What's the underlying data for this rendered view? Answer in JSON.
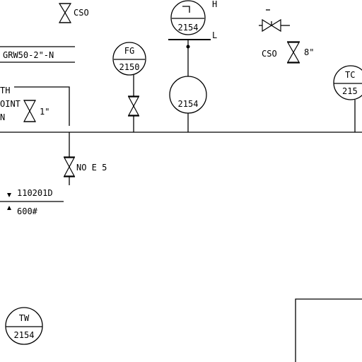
{
  "instruments": {
    "fg_tag": "FG",
    "fg_num": "2150",
    "top_num": "2154",
    "top_h": "H",
    "top_l": "L",
    "mid_num": "2154",
    "tc_tag": "TC",
    "tc_num": "215",
    "tw_tag": "TW",
    "tw_num": "2154"
  },
  "labels": {
    "cso_top": "CSO",
    "cso_right": "CSO",
    "size_right": "8\"",
    "line_id": "GRW50-2\"-N",
    "frag_th": "TH",
    "frag_oint": "OINT",
    "frag_n": "N",
    "size_left": "1\"",
    "valve_note": "NO E 5",
    "elev_1": "110201D",
    "elev_2": "600#"
  }
}
